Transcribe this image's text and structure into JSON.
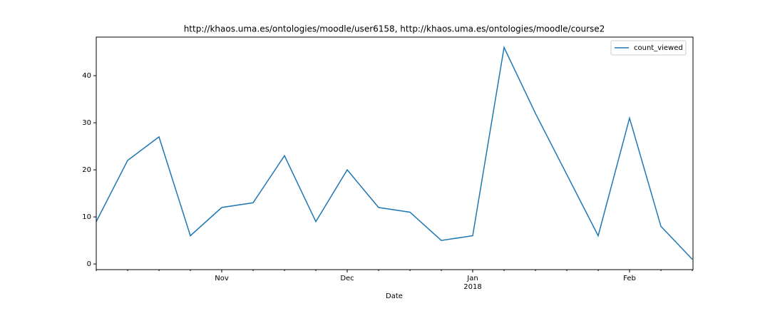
{
  "chart_data": {
    "type": "line",
    "title": "http://khaos.uma.es/ontologies/moodle/user6158, http://khaos.uma.es/ontologies/moodle/course2",
    "x_label": "Date",
    "categories": [
      null,
      null,
      null,
      null,
      "Nov",
      null,
      null,
      null,
      "Dec",
      null,
      null,
      null,
      "Jan",
      null,
      null,
      null,
      null,
      "Feb",
      null,
      null
    ],
    "category_sublabels": {
      "12": "2018"
    },
    "series": [
      {
        "name": "count_viewed",
        "color": "#1f77b4",
        "values": [
          9,
          22,
          27,
          6,
          12,
          13,
          23,
          9,
          20,
          12,
          11,
          5,
          6,
          46,
          32,
          19,
          6,
          31,
          8,
          1
        ]
      }
    ],
    "ylim": [
      -1.2,
      48.2
    ],
    "yticks": [
      0,
      10,
      20,
      30,
      40
    ],
    "legend": "upper right",
    "grid": false
  }
}
